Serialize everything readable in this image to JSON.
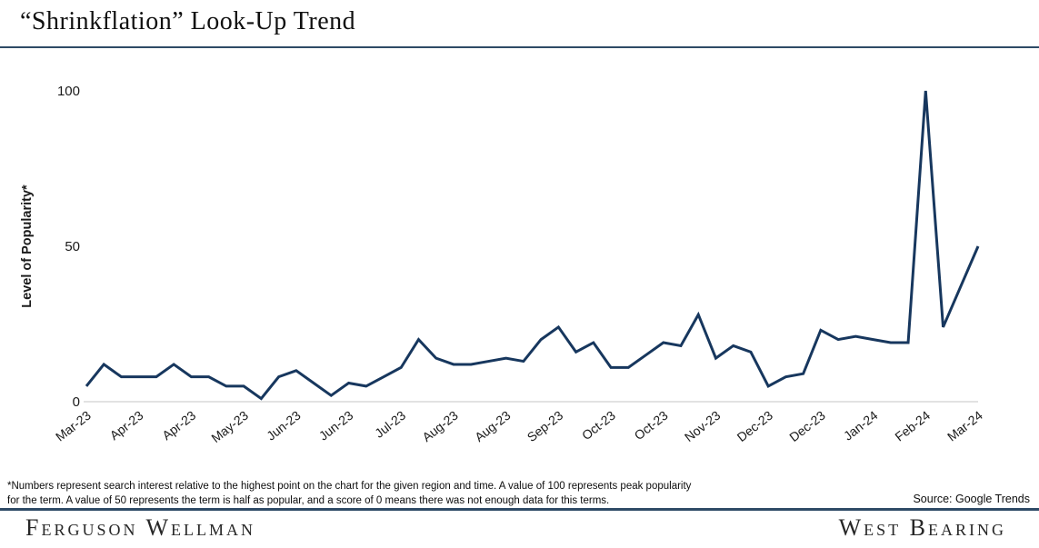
{
  "header": {
    "title": "“Shrinkflation” Look-Up Trend"
  },
  "chart_data": {
    "type": "line",
    "title": "“Shrinkflation” Look-Up Trend",
    "xlabel": "",
    "ylabel": "Level of Popularity*",
    "ylim": [
      0,
      100
    ],
    "yticks": [
      0,
      50,
      100
    ],
    "grid": false,
    "legend_position": "none",
    "line_color": "#17375e",
    "axis_line_color": "#d9d9d9",
    "label_step": 3,
    "x_tick_labels": [
      "Mar-23",
      "Apr-23",
      "Apr-23",
      "May-23",
      "Jun-23",
      "Jun-23",
      "Jul-23",
      "Aug-23",
      "Aug-23",
      "Sep-23",
      "Oct-23",
      "Oct-23",
      "Nov-23",
      "Dec-23",
      "Dec-23",
      "Jan-24",
      "Feb-24",
      "Mar-24"
    ],
    "values": [
      5,
      12,
      8,
      8,
      8,
      12,
      8,
      8,
      5,
      5,
      1,
      8,
      10,
      6,
      2,
      6,
      5,
      8,
      11,
      20,
      14,
      12,
      12,
      13,
      14,
      13,
      20,
      24,
      16,
      19,
      11,
      11,
      15,
      19,
      18,
      28,
      14,
      18,
      16,
      5,
      8,
      9,
      23,
      20,
      21,
      20,
      19,
      19,
      100,
      24,
      37,
      50
    ]
  },
  "footnote": {
    "line1": "*Numbers represent search interest relative to the highest point on the chart for the given region and time. A value of 100 represents peak popularity",
    "line2": "for the term. A value of 50 represents the term is half as popular, and a score of 0 means there was not enough data for this terms."
  },
  "source": {
    "label": "Source: Google Trends"
  },
  "footer": {
    "left_brand": "Ferguson Wellman",
    "right_brand": "West Bearing"
  }
}
